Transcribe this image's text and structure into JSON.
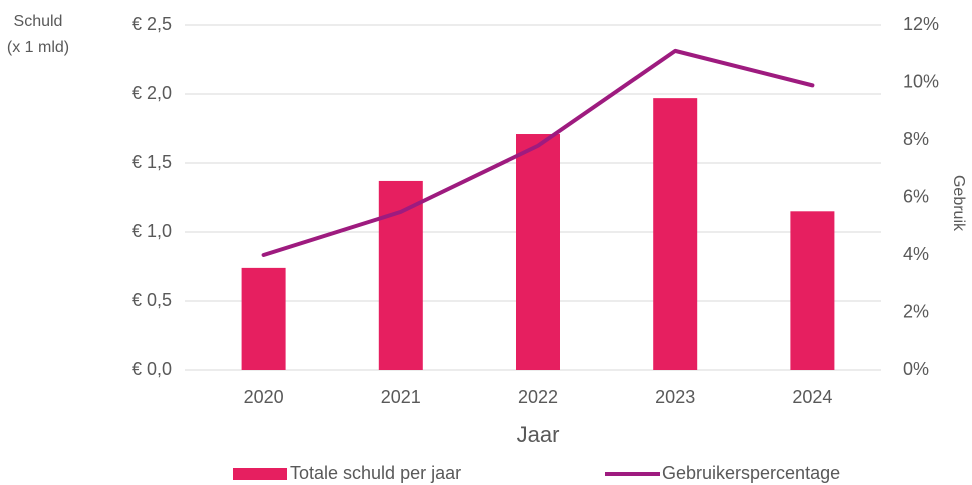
{
  "chart_data": {
    "type": "bar_line",
    "categories": [
      "2020",
      "2021",
      "2022",
      "2023",
      "2024"
    ],
    "series": [
      {
        "name": "Totale schuld per jaar",
        "type": "bar",
        "color": "#e61f60",
        "values": [
          0.74,
          1.37,
          1.71,
          1.97,
          1.15
        ]
      },
      {
        "name": "Gebruikerspercentage",
        "type": "line",
        "axis": "y2",
        "color": "#9e1b7f",
        "values": [
          4.0,
          5.5,
          7.8,
          11.1,
          9.9
        ]
      }
    ],
    "ylabel": [
      "Schuld",
      "(x 1 mld)"
    ],
    "y2label": "Gebruik",
    "xlabel": "Jaar",
    "ylim": [
      0,
      2.5
    ],
    "yticks": [
      {
        "value": 0,
        "label": "€ 0,0"
      },
      {
        "value": 0.5,
        "label": "€ 0,5"
      },
      {
        "value": 1,
        "label": "€ 1,0"
      },
      {
        "value": 1.5,
        "label": "€ 1,5"
      },
      {
        "value": 2,
        "label": "€ 2,0"
      },
      {
        "value": 2.5,
        "label": "€ 2,5"
      }
    ],
    "y2lim": [
      0,
      12
    ],
    "y2ticks": [
      {
        "value": 0,
        "label": "0%"
      },
      {
        "value": 2,
        "label": "2%"
      },
      {
        "value": 4,
        "label": "4%"
      },
      {
        "value": 6,
        "label": "6%"
      },
      {
        "value": 8,
        "label": "8%"
      },
      {
        "value": 10,
        "label": "10%"
      },
      {
        "value": 12,
        "label": "12%"
      }
    ],
    "grid": true,
    "legend": "bottom"
  }
}
